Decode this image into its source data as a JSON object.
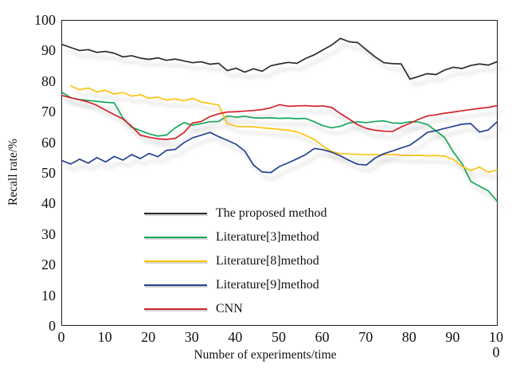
{
  "figure": {
    "y_axis_label": "Recall rate/%",
    "x_axis_label": "Number of experiments/time"
  },
  "chart_data": {
    "type": "line",
    "title": "",
    "xlabel": "Number of experiments/time",
    "ylabel": "Recall rate/%",
    "xlim": [
      0,
      100
    ],
    "ylim": [
      0,
      100
    ],
    "grid": false,
    "legend_position": "inside-left",
    "x_ticks": [
      "0",
      "10",
      "20",
      "30",
      "40",
      "50",
      "60",
      "70",
      "80",
      "90",
      "100"
    ],
    "y_ticks": [
      0,
      10,
      20,
      30,
      40,
      50,
      60,
      70,
      80,
      90,
      100
    ],
    "series": [
      {
        "name": "The proposed method",
        "color": "#2b2b2b",
        "x_start": 0,
        "x_step": 2,
        "values": [
          92.2,
          91.2,
          90.2,
          90.5,
          89.6,
          89.9,
          89.3,
          88.1,
          88.5,
          87.7,
          87.3,
          87.8,
          87.0,
          87.4,
          86.8,
          86.2,
          86.5,
          85.7,
          86.0,
          83.6,
          84.4,
          83.1,
          84.2,
          83.4,
          85.2,
          85.8,
          86.3,
          86.0,
          87.6,
          88.8,
          90.4,
          92.0,
          94.2,
          93.1,
          92.8,
          90.4,
          88.1,
          86.2,
          85.9,
          85.8,
          80.8,
          81.7,
          82.6,
          82.3,
          83.8,
          84.7,
          84.3,
          85.3,
          85.8,
          85.4,
          86.5
        ]
      },
      {
        "name": "Literature[3]method",
        "color": "#17a85b",
        "x_start": 0,
        "x_step": 2,
        "values": [
          76.4,
          74.7,
          74.1,
          73.8,
          73.5,
          73.2,
          73.0,
          68.0,
          65.0,
          63.9,
          62.8,
          62.1,
          62.4,
          64.8,
          66.5,
          65.7,
          66.2,
          66.8,
          66.9,
          68.7,
          68.3,
          68.6,
          68.1,
          68.0,
          68.1,
          67.9,
          68.0,
          67.8,
          67.9,
          66.8,
          65.5,
          64.8,
          65.3,
          66.4,
          66.8,
          66.5,
          66.9,
          67.1,
          66.4,
          66.3,
          66.8,
          66.7,
          65.9,
          63.8,
          61.6,
          56.8,
          53.0,
          47.2,
          45.6,
          44.1,
          40.8
        ]
      },
      {
        "name": "Literature[8]method",
        "color": "#fec10e",
        "x_start": 2,
        "x_step": 2,
        "values": [
          78.6,
          77.3,
          77.9,
          76.6,
          77.1,
          75.9,
          76.4,
          75.2,
          75.7,
          74.5,
          74.9,
          73.9,
          74.3,
          73.7,
          74.5,
          73.3,
          72.8,
          72.3,
          66.2,
          65.3,
          65.2,
          65.1,
          64.8,
          64.6,
          64.3,
          64.0,
          63.5,
          62.3,
          61.0,
          58.8,
          57.0,
          56.3,
          56.2,
          56.1,
          56.0,
          56.0,
          55.9,
          56.1,
          55.8,
          55.7,
          55.8,
          55.6,
          55.7,
          55.5,
          54.4,
          52.1,
          50.8,
          51.9,
          50.2,
          50.9
        ]
      },
      {
        "name": "Literature[9]method",
        "color": "#24418e",
        "x_start": 0,
        "x_step": 2,
        "values": [
          54.0,
          52.9,
          54.5,
          53.2,
          55.0,
          53.6,
          55.4,
          54.2,
          56.0,
          54.7,
          56.4,
          55.3,
          57.4,
          57.7,
          59.9,
          61.5,
          62.4,
          63.3,
          61.9,
          60.7,
          59.4,
          57.2,
          52.6,
          50.3,
          50.1,
          52.1,
          53.3,
          54.6,
          56.0,
          58.0,
          57.6,
          56.8,
          55.6,
          54.1,
          52.8,
          52.6,
          54.9,
          56.3,
          57.2,
          58.2,
          59.1,
          61.1,
          63.3,
          63.9,
          64.6,
          65.3,
          66.0,
          66.2,
          63.4,
          64.1,
          66.7
        ]
      },
      {
        "name": "CNN",
        "color": "#d2232a",
        "x_start": 0,
        "x_step": 2,
        "values": [
          75.4,
          74.7,
          74.0,
          73.3,
          72.2,
          70.6,
          69.1,
          67.7,
          65.3,
          62.4,
          61.7,
          61.2,
          61.0,
          61.3,
          63.2,
          66.4,
          66.9,
          68.5,
          69.4,
          70.0,
          70.1,
          70.3,
          70.5,
          70.8,
          71.4,
          72.4,
          71.9,
          72.0,
          72.1,
          71.9,
          72.0,
          71.5,
          69.5,
          67.7,
          65.8,
          64.6,
          64.0,
          63.7,
          63.6,
          65.1,
          66.3,
          67.6,
          68.7,
          69.1,
          69.6,
          70.0,
          70.4,
          70.8,
          71.2,
          71.5,
          72.1
        ]
      }
    ]
  }
}
